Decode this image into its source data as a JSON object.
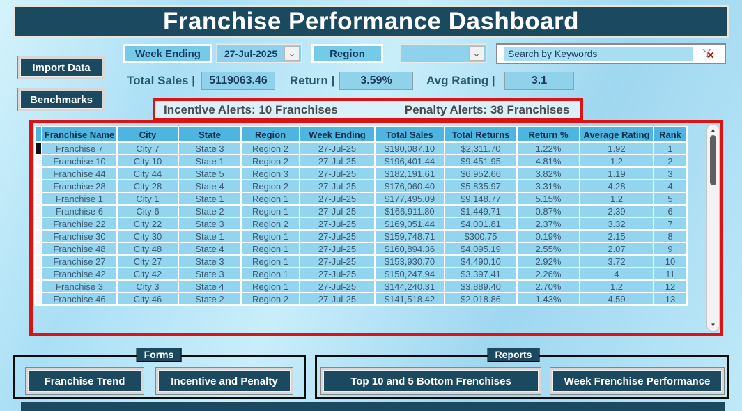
{
  "title": "Franchise Performance Dashboard",
  "controls": {
    "week_ending_label": "Week Ending",
    "week_ending_value": "27-Jul-2025",
    "region_label": "Region",
    "region_value": "",
    "search_placeholder": "Search by Keywords"
  },
  "actions": {
    "import_data": "Import Data",
    "benchmarks": "Benchmarks"
  },
  "stats": {
    "total_sales_label": "Total Sales |",
    "total_sales_value": "5119063.46",
    "return_label": "Return |",
    "return_value": "3.59%",
    "avg_rating_label": "Avg Rating |",
    "avg_rating_value": "3.1"
  },
  "alerts": {
    "incentive": "Incentive Alerts: 10 Franchises",
    "penalty": "Penalty Alerts: 38 Franchises"
  },
  "icons": {
    "dropdown": "⌄",
    "clear_filter": "funnel-with-red-x",
    "scroll_up": "▲",
    "scroll_down": "▼"
  },
  "table": {
    "columns": [
      "Franchise Name",
      "City",
      "State",
      "Region",
      "Week Ending",
      "Total Sales",
      "Total Returns",
      "Return %",
      "Average Rating",
      "Rank"
    ],
    "rows": [
      [
        "Franchise 7",
        "City 7",
        "State 3",
        "Region 2",
        "27-Jul-25",
        "$190,087.10",
        "$2,311.70",
        "1.22%",
        "1.92",
        "1"
      ],
      [
        "Franchise 10",
        "City 10",
        "State 1",
        "Region 2",
        "27-Jul-25",
        "$196,401.44",
        "$9,451.95",
        "4.81%",
        "1.2",
        "2"
      ],
      [
        "Franchise 44",
        "City 44",
        "State 5",
        "Region 3",
        "27-Jul-25",
        "$182,191.61",
        "$6,952.66",
        "3.82%",
        "1.19",
        "3"
      ],
      [
        "Franchise 28",
        "City 28",
        "State 4",
        "Region 2",
        "27-Jul-25",
        "$176,060.40",
        "$5,835.97",
        "3.31%",
        "4.28",
        "4"
      ],
      [
        "Franchise 1",
        "City 1",
        "State 1",
        "Region 1",
        "27-Jul-25",
        "$177,495.09",
        "$9,148.77",
        "5.15%",
        "1.2",
        "5"
      ],
      [
        "Franchise 6",
        "City 6",
        "State 2",
        "Region 1",
        "27-Jul-25",
        "$166,911.80",
        "$1,449.71",
        "0.87%",
        "2.39",
        "6"
      ],
      [
        "Franchise 22",
        "City 22",
        "State 3",
        "Region 2",
        "27-Jul-25",
        "$169,051.44",
        "$4,001.81",
        "2.37%",
        "3.32",
        "7"
      ],
      [
        "Franchise 30",
        "City 30",
        "State 1",
        "Region 1",
        "27-Jul-25",
        "$159,748.71",
        "$300.75",
        "0.19%",
        "2.15",
        "8"
      ],
      [
        "Franchise 48",
        "City 48",
        "State 4",
        "Region 1",
        "27-Jul-25",
        "$160,894.36",
        "$4,095.19",
        "2.55%",
        "2.07",
        "9"
      ],
      [
        "Franchise 27",
        "City 27",
        "State 3",
        "Region 1",
        "27-Jul-25",
        "$153,930.70",
        "$4,490.10",
        "2.92%",
        "3.72",
        "10"
      ],
      [
        "Franchise 42",
        "City 42",
        "State 3",
        "Region 1",
        "27-Jul-25",
        "$150,247.94",
        "$3,397.41",
        "2.26%",
        "4",
        "11"
      ],
      [
        "Franchise 3",
        "City 3",
        "State 4",
        "Region 1",
        "27-Jul-25",
        "$144,240.31",
        "$3,889.40",
        "2.70%",
        "1.2",
        "12"
      ],
      [
        "Franchise 46",
        "City 46",
        "State 2",
        "Region 2",
        "27-Jul-25",
        "$141,518.42",
        "$2,018.86",
        "1.43%",
        "4.59",
        "13"
      ]
    ]
  },
  "forms_group": {
    "label": "Forms",
    "buttons": [
      "Franchise Trend",
      "Incentive and Penalty"
    ]
  },
  "reports_group": {
    "label": "Reports",
    "buttons": [
      "Top 10 and 5 Bottom Frenchises",
      "Week Frenchise Performance"
    ]
  }
}
